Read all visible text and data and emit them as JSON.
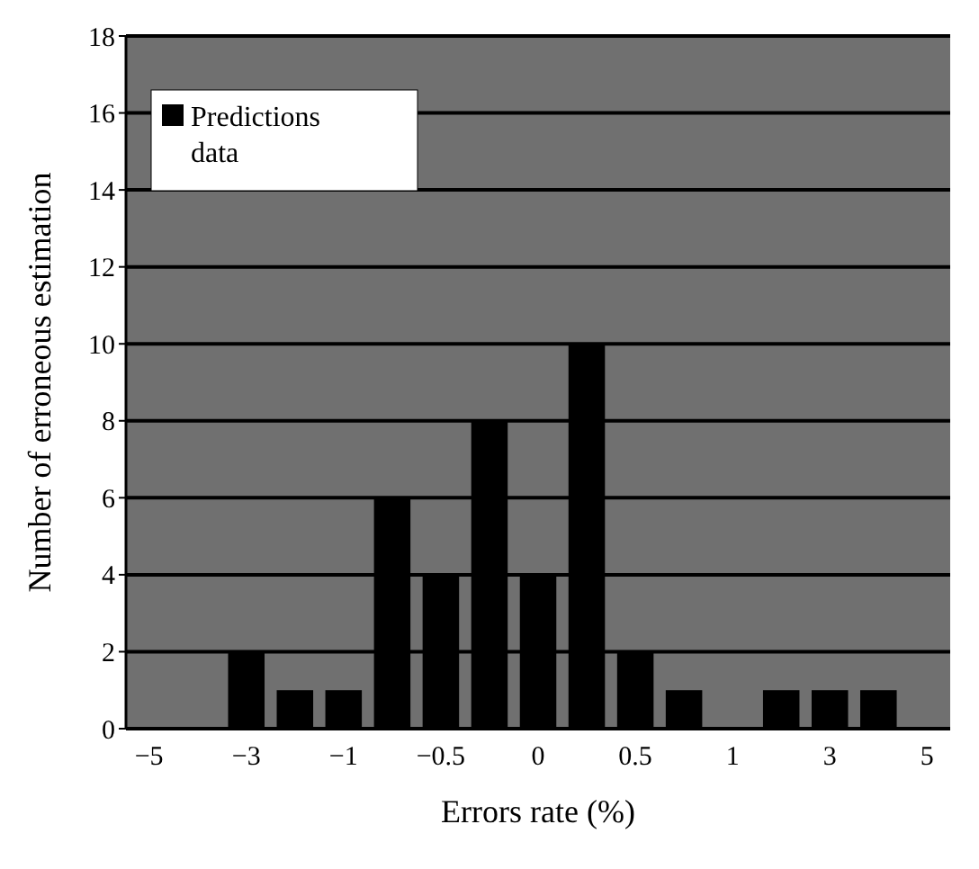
{
  "chart_data": {
    "type": "bar",
    "xlabel": "Errors rate (%)",
    "ylabel": "Number of erroneous estimation",
    "categories": [
      "−5",
      null,
      "−3",
      null,
      "−1",
      null,
      "−0.5",
      null,
      "0",
      null,
      "0.5",
      null,
      "1",
      null,
      "3",
      null,
      "5"
    ],
    "series": [
      {
        "name": "Predictions data",
        "color": "#000000",
        "values": [
          0,
          0,
          2,
          1,
          1,
          6,
          4,
          8,
          4,
          10,
          2,
          1,
          0,
          1,
          1,
          1,
          0
        ]
      }
    ],
    "ylim": [
      0,
      18
    ],
    "yticks": [
      0,
      2,
      4,
      6,
      8,
      10,
      12,
      14,
      16,
      18
    ],
    "grid": "y",
    "legend": "top left"
  }
}
